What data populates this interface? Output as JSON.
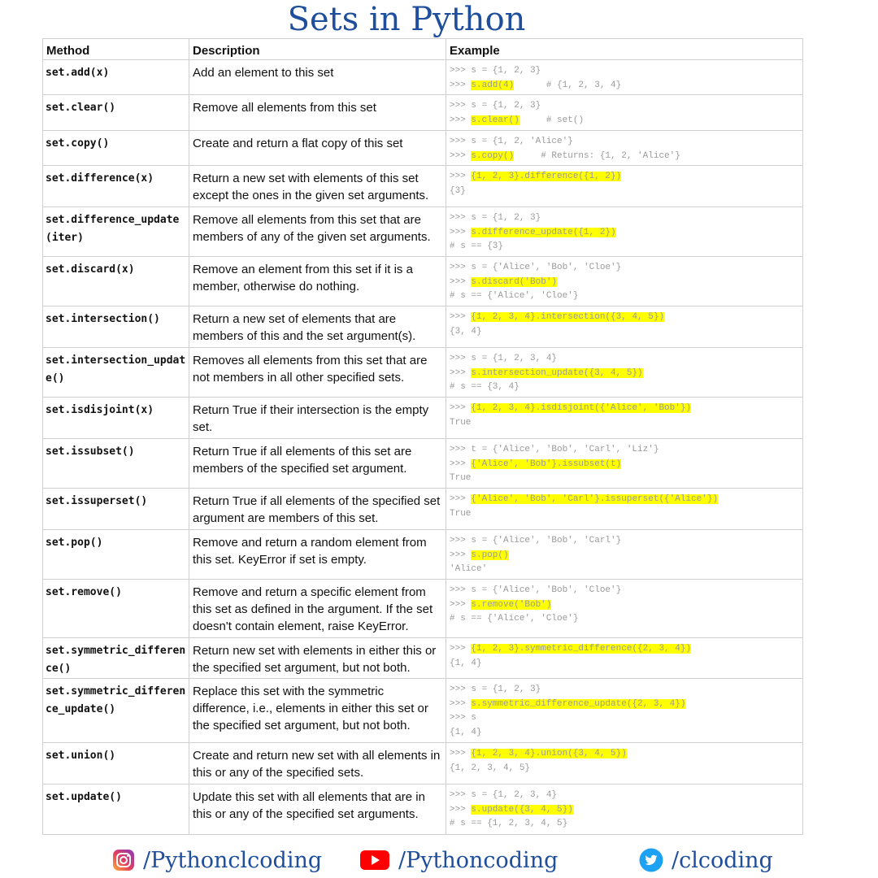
{
  "title": "Sets in Python",
  "headers": [
    "Method",
    "Description",
    "Example"
  ],
  "rows": [
    {
      "method": "set.add(x)",
      "desc": "Add an element to this set",
      "ex": [
        [
          [
            ">>> s = {1, 2, 3}",
            false
          ]
        ],
        [
          [
            ">>> ",
            false
          ],
          [
            "s.add(4)",
            true
          ],
          [
            "      # {1, 2, 3, 4}",
            false
          ]
        ]
      ]
    },
    {
      "method": "set.clear()",
      "desc": "Remove all elements from this set",
      "ex": [
        [
          [
            ">>> s = {1, 2, 3}",
            false
          ]
        ],
        [
          [
            ">>> ",
            false
          ],
          [
            "s.clear()",
            true
          ],
          [
            "     # set()",
            false
          ]
        ]
      ]
    },
    {
      "method": "set.copy()",
      "desc": "Create and return a flat copy of this set",
      "ex": [
        [
          [
            ">>> s = {1, 2, 'Alice'}",
            false
          ]
        ],
        [
          [
            ">>> ",
            false
          ],
          [
            "s.copy()",
            true
          ],
          [
            "     # Returns: {1, 2, 'Alice'}",
            false
          ]
        ]
      ]
    },
    {
      "method": "set.difference(x)",
      "desc": "Return a new set with elements of this set except the ones in the given set arguments.",
      "ex": [
        [
          [
            ">>> ",
            false
          ],
          [
            "{1, 2, 3}.difference({1, 2})",
            true
          ]
        ],
        [
          [
            "{3}",
            false
          ]
        ]
      ]
    },
    {
      "method": "set.difference_update(iter)",
      "desc": "Remove all elements from this set that are members of any of the given set arguments.",
      "ex": [
        [
          [
            ">>> s = {1, 2, 3}",
            false
          ]
        ],
        [
          [
            ">>> ",
            false
          ],
          [
            "s.difference_update({1, 2})",
            true
          ]
        ],
        [
          [
            "# s == {3}",
            false
          ]
        ]
      ]
    },
    {
      "method": "set.discard(x)",
      "desc": "Remove an element from this set if it is a member, otherwise do nothing.",
      "ex": [
        [
          [
            ">>> s = {'Alice', 'Bob', 'Cloe'}",
            false
          ]
        ],
        [
          [
            ">>> ",
            false
          ],
          [
            "s.discard('Bob')",
            true
          ]
        ],
        [
          [
            "# s == {'Alice', 'Cloe'}",
            false
          ]
        ]
      ]
    },
    {
      "method": "set.intersection()",
      "desc": "Return a new set of elements that are members of this and the set argument(s).",
      "ex": [
        [
          [
            ">>> ",
            false
          ],
          [
            "{1, 2, 3, 4}.intersection({3, 4, 5})",
            true
          ]
        ],
        [
          [
            "{3, 4}",
            false
          ]
        ]
      ]
    },
    {
      "method": "set.intersection_update()",
      "desc": "Removes all elements from this set that are not members in all other specified sets.",
      "ex": [
        [
          [
            ">>> s = {1, 2, 3, 4}",
            false
          ]
        ],
        [
          [
            ">>> ",
            false
          ],
          [
            "s.intersection_update({3, 4, 5})",
            true
          ]
        ],
        [
          [
            "# s == {3, 4}",
            false
          ]
        ]
      ]
    },
    {
      "method": "set.isdisjoint(x)",
      "desc": "Return True if their intersection is the empty set.",
      "ex": [
        [
          [
            ">>> ",
            false
          ],
          [
            "{1, 2, 3, 4}.isdisjoint({'Alice', 'Bob'})",
            true
          ]
        ],
        [
          [
            "True",
            false
          ]
        ]
      ]
    },
    {
      "method": "set.issubset()",
      "desc": "Return True if all elements of this set are members of the specified set argument.",
      "ex": [
        [
          [
            ">>> t = {'Alice', 'Bob', 'Carl', 'Liz'}",
            false
          ]
        ],
        [
          [
            ">>> ",
            false
          ],
          [
            "{'Alice', 'Bob'}.issubset(t)",
            true
          ]
        ],
        [
          [
            "True",
            false
          ]
        ]
      ]
    },
    {
      "method": "set.issuperset()",
      "desc": "Return True if all elements of the specified set argument are members of this set.",
      "ex": [
        [
          [
            ">>> ",
            false
          ],
          [
            "{'Alice', 'Bob', 'Carl'}.issuperset({'Alice'})",
            true
          ]
        ],
        [
          [
            "True",
            false
          ]
        ]
      ]
    },
    {
      "method": "set.pop()",
      "desc": "Remove and return a random element from this set. KeyError if set is empty.",
      "ex": [
        [
          [
            ">>> s = {'Alice', 'Bob', 'Carl'}",
            false
          ]
        ],
        [
          [
            ">>> ",
            false
          ],
          [
            "s.pop()",
            true
          ]
        ],
        [
          [
            "'Alice'",
            false
          ]
        ]
      ]
    },
    {
      "method": "set.remove()",
      "desc": "Remove and return a specific element from this set as defined in the argument. If the set doesn't contain element, raise KeyError.",
      "ex": [
        [
          [
            ">>> s = {'Alice', 'Bob', 'Cloe'}",
            false
          ]
        ],
        [
          [
            ">>> ",
            false
          ],
          [
            "s.remove('Bob')",
            true
          ]
        ],
        [
          [
            "# s == {'Alice', 'Cloe'}",
            false
          ]
        ]
      ]
    },
    {
      "method": "set.symmetric_difference()",
      "desc": "Return new set with elements in either this or the specified set argument, but not both.",
      "ex": [
        [
          [
            ">>> ",
            false
          ],
          [
            "{1, 2, 3}.symmetric_difference({2, 3, 4})",
            true
          ]
        ],
        [
          [
            "{1, 4}",
            false
          ]
        ]
      ]
    },
    {
      "method": "set.symmetric_difference_update()",
      "desc": "Replace this set with the symmetric difference, i.e., elements in either this set or the specified set argument, but not both.",
      "ex": [
        [
          [
            ">>> s = {1, 2, 3}",
            false
          ]
        ],
        [
          [
            ">>> ",
            false
          ],
          [
            "s.symmetric_difference_update({2, 3, 4})",
            true
          ]
        ],
        [
          [
            ">>> s",
            false
          ]
        ],
        [
          [
            "{1, 4}",
            false
          ]
        ]
      ]
    },
    {
      "method": "set.union()",
      "desc": "Create and return new set with all elements in this or any of the specified sets.",
      "ex": [
        [
          [
            ">>> ",
            false
          ],
          [
            "{1, 2, 3, 4}.union({3, 4, 5})",
            true
          ]
        ],
        [
          [
            "{1, 2, 3, 4, 5}",
            false
          ]
        ]
      ]
    },
    {
      "method": "set.update()",
      "desc": "Update this set with all elements that are in this or any of the specified set arguments.",
      "ex": [
        [
          [
            ">>> s = {1, 2, 3, 4}",
            false
          ]
        ],
        [
          [
            ">>> ",
            false
          ],
          [
            "s.update({3, 4, 5})",
            true
          ]
        ],
        [
          [
            "# s == {1, 2, 3, 4, 5}",
            false
          ]
        ]
      ]
    }
  ],
  "footer": {
    "instagram": "/Pythonclcoding",
    "youtube": "/Pythoncoding",
    "twitter": "/clcoding"
  }
}
